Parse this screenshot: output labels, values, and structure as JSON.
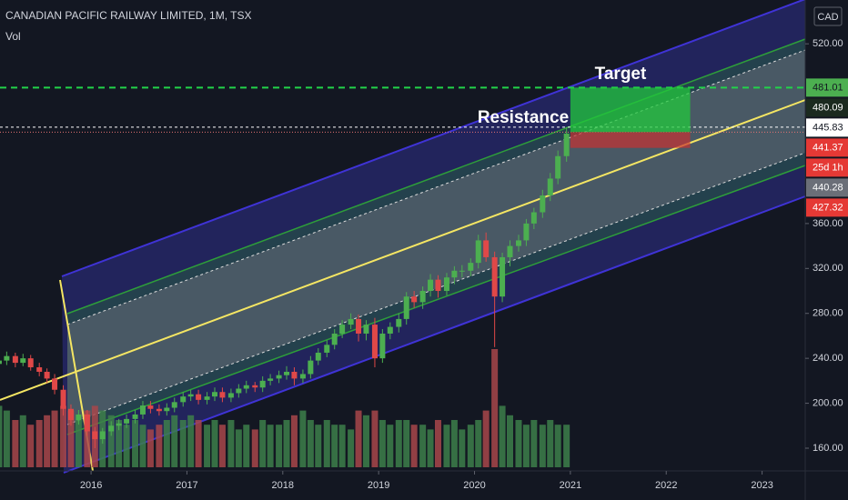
{
  "chart_data": {
    "type": "candlestick",
    "title": "CANADIAN PACIFIC RAILWAY LIMITED, 1M, TSX",
    "subtitle": "Vol",
    "currency": "CAD",
    "annotations": [
      "Target",
      "Resistance"
    ],
    "x": [
      2015.04,
      2015.12,
      2015.21,
      2015.29,
      2015.37,
      2015.46,
      2015.54,
      2015.62,
      2015.71,
      2015.79,
      2015.87,
      2015.96,
      2016.04,
      2016.12,
      2016.21,
      2016.29,
      2016.37,
      2016.46,
      2016.54,
      2016.62,
      2016.71,
      2016.79,
      2016.87,
      2016.96,
      2017.04,
      2017.12,
      2017.21,
      2017.29,
      2017.37,
      2017.46,
      2017.54,
      2017.62,
      2017.71,
      2017.79,
      2017.87,
      2017.96,
      2018.04,
      2018.12,
      2018.21,
      2018.29,
      2018.37,
      2018.46,
      2018.54,
      2018.62,
      2018.71,
      2018.79,
      2018.87,
      2018.96,
      2019.04,
      2019.12,
      2019.21,
      2019.29,
      2019.37,
      2019.46,
      2019.54,
      2019.62,
      2019.71,
      2019.79,
      2019.87,
      2019.96,
      2020.04,
      2020.12,
      2020.21,
      2020.29,
      2020.37,
      2020.46,
      2020.54,
      2020.62,
      2020.71,
      2020.79,
      2020.87,
      2020.96
    ],
    "open": [
      235,
      238,
      242,
      236,
      240,
      232,
      228,
      222,
      212,
      195,
      185,
      190,
      175,
      168,
      175,
      180,
      182,
      186,
      190,
      198,
      195,
      193,
      196,
      201,
      206,
      208,
      203,
      206,
      210,
      205,
      209,
      213,
      216,
      214,
      220,
      222,
      225,
      228,
      222,
      226,
      238,
      245,
      252,
      262,
      270,
      275,
      262,
      270,
      240,
      262,
      268,
      275,
      295,
      290,
      300,
      310,
      300,
      312,
      318,
      318,
      325,
      345,
      330,
      295,
      330,
      340,
      345,
      360,
      370,
      385,
      400,
      420
    ],
    "high": [
      242,
      246,
      245,
      244,
      243,
      236,
      231,
      226,
      216,
      199,
      194,
      194,
      179,
      178,
      184,
      186,
      190,
      194,
      202,
      202,
      199,
      200,
      205,
      210,
      212,
      212,
      210,
      214,
      214,
      213,
      217,
      220,
      219,
      224,
      226,
      229,
      233,
      232,
      230,
      242,
      249,
      256,
      266,
      274,
      280,
      279,
      274,
      276,
      266,
      272,
      280,
      299,
      300,
      304,
      315,
      314,
      316,
      322,
      323,
      329,
      350,
      352,
      335,
      334,
      345,
      350,
      364,
      374,
      390,
      405,
      425,
      446
    ],
    "low": [
      231,
      234,
      232,
      233,
      229,
      224,
      218,
      208,
      189,
      180,
      181,
      171,
      160,
      164,
      171,
      176,
      178,
      182,
      186,
      191,
      189,
      189,
      192,
      197,
      202,
      199,
      199,
      202,
      201,
      201,
      205,
      209,
      210,
      210,
      216,
      218,
      221,
      216,
      218,
      222,
      234,
      241,
      248,
      258,
      266,
      255,
      256,
      232,
      236,
      257,
      263,
      270,
      285,
      284,
      295,
      294,
      296,
      306,
      312,
      313,
      320,
      326,
      250,
      290,
      322,
      335,
      340,
      355,
      365,
      380,
      395,
      415
    ],
    "close": [
      238,
      242,
      236,
      240,
      232,
      228,
      222,
      212,
      195,
      185,
      190,
      175,
      168,
      175,
      180,
      182,
      186,
      190,
      198,
      195,
      193,
      196,
      201,
      206,
      208,
      203,
      206,
      210,
      205,
      209,
      213,
      216,
      214,
      220,
      222,
      225,
      228,
      222,
      226,
      238,
      245,
      252,
      262,
      270,
      275,
      262,
      270,
      240,
      262,
      268,
      275,
      295,
      290,
      300,
      310,
      300,
      312,
      318,
      318,
      325,
      345,
      330,
      295,
      330,
      340,
      345,
      360,
      370,
      385,
      400,
      420,
      440
    ],
    "volume": [
      13,
      12,
      10,
      11,
      9,
      10,
      11,
      12,
      13,
      12,
      10,
      12,
      13,
      12,
      11,
      10,
      9,
      10,
      9,
      8,
      9,
      10,
      11,
      10,
      11,
      10,
      9,
      10,
      9,
      10,
      8,
      9,
      8,
      10,
      9,
      9,
      10,
      11,
      12,
      10,
      9,
      10,
      9,
      9,
      8,
      12,
      11,
      12,
      10,
      9,
      10,
      10,
      9,
      9,
      8,
      10,
      9,
      10,
      8,
      9,
      10,
      12,
      25,
      13,
      11,
      10,
      9,
      10,
      9,
      10,
      9,
      9
    ],
    "up_color": "#4caf50",
    "down_color": "#e04848",
    "volume_up_color": "#3d7f4a",
    "volume_down_color": "#a8474a",
    "xlim": [
      2015.05,
      2023.45
    ],
    "xticks": [
      2016,
      2017,
      2018,
      2019,
      2020,
      2021,
      2022,
      2023
    ],
    "ylim": [
      143,
      559
    ],
    "yticks": [
      {
        "value": 520,
        "label": "520.00"
      },
      {
        "value": 360,
        "label": "360.00"
      },
      {
        "value": 320,
        "label": "320.00"
      },
      {
        "value": 280,
        "label": "280.00"
      },
      {
        "value": 240,
        "label": "240.00"
      },
      {
        "value": 200,
        "label": "200.00"
      },
      {
        "value": 160,
        "label": "160.00"
      }
    ],
    "vlim": [
      0,
      40
    ],
    "position": {
      "target": 481.01,
      "entry": 441.37,
      "stop": 427.32,
      "x_start": 2021.0,
      "x_end": 2022.25
    },
    "resistance": 445.83,
    "price_labels": [
      {
        "value": 481.01,
        "bg": "#4caf50",
        "fg": "#131722"
      },
      {
        "value": 480.09,
        "bg": "#1b2a1f",
        "fg": "#ffffff"
      },
      {
        "value": 445.83,
        "bg": "#ffffff",
        "fg": "#131722"
      },
      {
        "value": 441.37,
        "bg": "#e53935",
        "fg": "#ffffff"
      },
      {
        "text": "25d 1h",
        "bg": "#e53935",
        "fg": "#ffffff"
      },
      {
        "value": 440.28,
        "bg": "#6b6f78",
        "fg": "#ffffff"
      },
      {
        "value": 427.32,
        "bg": "#e53935",
        "fg": "#ffffff"
      }
    ]
  }
}
